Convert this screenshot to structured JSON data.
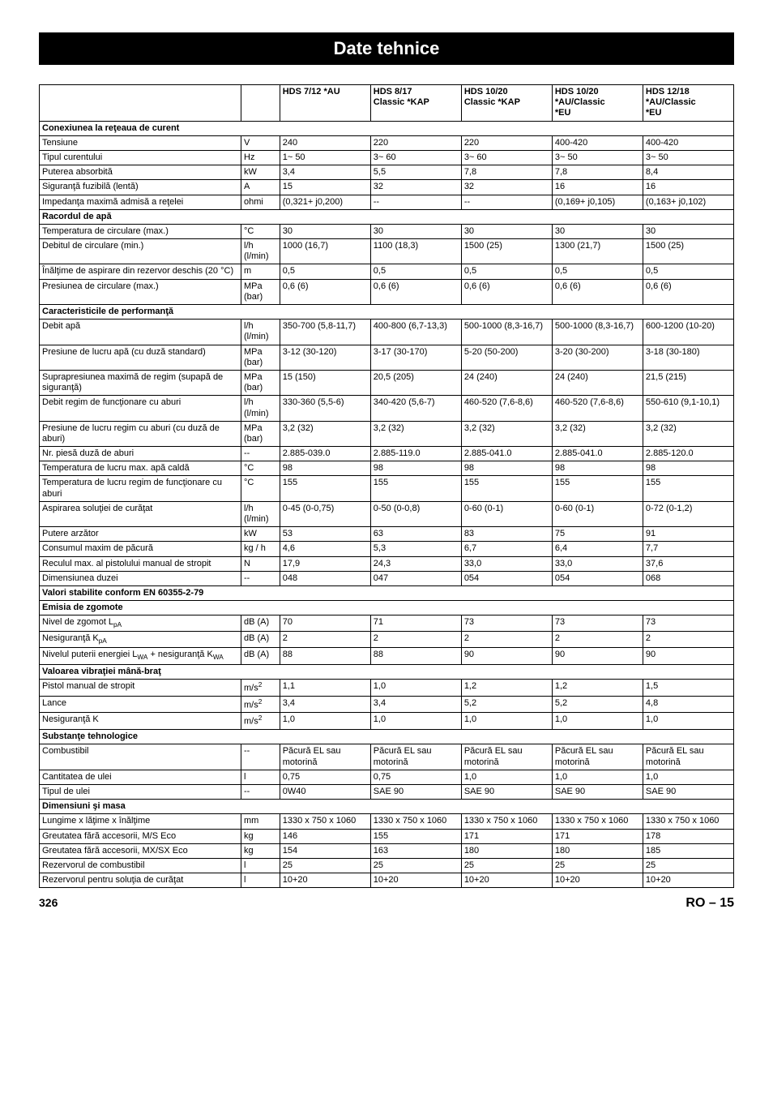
{
  "title": "Date tehnice",
  "footer": {
    "page": "326",
    "lang": "RO –",
    "num": "15"
  },
  "columns": {
    "h1": {
      "c2": "HDS 7/12 *AU",
      "c3": "HDS 8/17\nClassic *KAP",
      "c4": "HDS 10/20\nClassic *KAP",
      "c5": "HDS 10/20\n*AU/Classic\n*EU",
      "c6": "HDS 12/18\n*AU/Classic\n*EU"
    }
  },
  "sections": [
    {
      "title": "Conexiunea la reţeaua de curent",
      "rows": [
        {
          "p": "Tensiune",
          "u": "V",
          "v": [
            "240",
            "220",
            "220",
            "400-420",
            "400-420"
          ]
        },
        {
          "p": "Tipul curentului",
          "u": "Hz",
          "v": [
            "1~ 50",
            "3~ 60",
            "3~ 60",
            "3~ 50",
            "3~ 50"
          ]
        },
        {
          "p": "Puterea absorbită",
          "u": "kW",
          "v": [
            "3,4",
            "5,5",
            "7,8",
            "7,8",
            "8,4"
          ]
        },
        {
          "p": "Siguranţă fuzibilă (lentă)",
          "u": "A",
          "v": [
            "15",
            "32",
            "32",
            "16",
            "16"
          ]
        },
        {
          "p": "Impedanţa maximă admisă a reţelei",
          "u": "ohmi",
          "v": [
            "(0,321+ j0,200)",
            "--",
            "--",
            "(0,169+ j0,105)",
            "(0,163+ j0,102)"
          ]
        }
      ]
    },
    {
      "title": "Racordul de apă",
      "rows": [
        {
          "p": "Temperatura de circulare (max.)",
          "u": "°C",
          "v": [
            "30",
            "30",
            "30",
            "30",
            "30"
          ]
        },
        {
          "p": "Debitul de circulare (min.)",
          "u": "l/h (l/min)",
          "v": [
            "1000 (16,7)",
            "1100 (18,3)",
            "1500 (25)",
            "1300 (21,7)",
            "1500 (25)"
          ]
        },
        {
          "p": "Înălţime de aspirare din rezervor deschis (20 °C)",
          "u": "m",
          "v": [
            "0,5",
            "0,5",
            "0,5",
            "0,5",
            "0,5"
          ]
        },
        {
          "p": "Presiunea de circulare (max.)",
          "u": "MPa (bar)",
          "v": [
            "0,6 (6)",
            "0,6 (6)",
            "0,6 (6)",
            "0,6 (6)",
            "0,6 (6)"
          ]
        }
      ]
    },
    {
      "title": "Caracteristicile de performanţă",
      "rows": [
        {
          "p": "Debit apă",
          "u": "l/h (l/min)",
          "v": [
            "350-700 (5,8-11,7)",
            "400-800 (6,7-13,3)",
            "500-1000 (8,3-16,7)",
            "500-1000 (8,3-16,7)",
            "600-1200 (10-20)"
          ]
        },
        {
          "p": "Presiune de lucru apă (cu duză standard)",
          "u": "MPa (bar)",
          "v": [
            "3-12 (30-120)",
            "3-17 (30-170)",
            "5-20 (50-200)",
            "3-20 (30-200)",
            "3-18 (30-180)"
          ]
        },
        {
          "p": "Suprapresiunea maximă de regim (supapă de siguranţă)",
          "u": "MPa (bar)",
          "v": [
            "15 (150)",
            "20,5 (205)",
            "24 (240)",
            "24 (240)",
            "21,5 (215)"
          ]
        },
        {
          "p": "Debit regim de funcţionare cu aburi",
          "u": "l/h (l/min)",
          "v": [
            "330-360 (5,5-6)",
            "340-420 (5,6-7)",
            "460-520 (7,6-8,6)",
            "460-520 (7,6-8,6)",
            "550-610 (9,1-10,1)"
          ]
        },
        {
          "p": "Presiune de lucru regim cu aburi (cu duză de aburi)",
          "u": "MPa (bar)",
          "v": [
            "3,2 (32)",
            "3,2 (32)",
            "3,2 (32)",
            "3,2 (32)",
            "3,2 (32)"
          ]
        },
        {
          "p": "Nr. piesă duză de aburi",
          "u": "--",
          "v": [
            "2.885-039.0",
            "2.885-119.0",
            "2.885-041.0",
            "2.885-041.0",
            "2.885-120.0"
          ]
        },
        {
          "p": "Temperatura de lucru max. apă caldă",
          "u": "°C",
          "v": [
            "98",
            "98",
            "98",
            "98",
            "98"
          ]
        },
        {
          "p": "Temperatura de lucru regim de funcţionare cu aburi",
          "u": "°C",
          "v": [
            "155",
            "155",
            "155",
            "155",
            "155"
          ]
        },
        {
          "p": "Aspirarea soluţiei de curăţat",
          "u": "l/h (l/min)",
          "v": [
            "0-45 (0-0,75)",
            "0-50 (0-0,8)",
            "0-60 (0-1)",
            "0-60 (0-1)",
            "0-72 (0-1,2)"
          ]
        },
        {
          "p": "Putere arzător",
          "u": "kW",
          "v": [
            "53",
            "63",
            "83",
            "75",
            "91"
          ]
        },
        {
          "p": "Consumul maxim de păcură",
          "u": "kg / h",
          "v": [
            "4,6",
            "5,3",
            "6,7",
            "6,4",
            "7,7"
          ]
        },
        {
          "p": "Reculul max. al pistolului manual de stropit",
          "u": "N",
          "v": [
            "17,9",
            "24,3",
            "33,0",
            "33,0",
            "37,6"
          ]
        },
        {
          "p": "Dimensiunea duzei",
          "u": "--",
          "v": [
            "048",
            "047",
            "054",
            "054",
            "068"
          ]
        }
      ]
    },
    {
      "title": "Valori stabilite conform EN 60355-2-79",
      "rows": []
    },
    {
      "title_html": "Emisia de zgomote",
      "rows": [
        {
          "p_html": "Nivel de zgomot L<sub>pA</sub>",
          "u": "dB (A)",
          "v": [
            "70",
            "71",
            "73",
            "73",
            "73"
          ]
        },
        {
          "p_html": "Nesiguranţă K<sub>pA</sub>",
          "u": "dB (A)",
          "v": [
            "2",
            "2",
            "2",
            "2",
            "2"
          ]
        },
        {
          "p_html": "Nivelul puterii energiei L<sub>WA</sub> + nesiguranţă K<sub>WA</sub>",
          "u": "dB (A)",
          "v": [
            "88",
            "88",
            "90",
            "90",
            "90"
          ]
        }
      ]
    },
    {
      "title_html": "Valoarea vibraţiei mână-braţ",
      "rows": [
        {
          "p": "Pistol manual de stropit",
          "u_html": "m/s<sup>2</sup>",
          "v": [
            "1,1",
            "1,0",
            "1,2",
            "1,2",
            "1,5"
          ]
        },
        {
          "p": "Lance",
          "u_html": "m/s<sup>2</sup>",
          "v": [
            "3,4",
            "3,4",
            "5,2",
            "5,2",
            "4,8"
          ]
        },
        {
          "p": "Nesiguranţă K",
          "u_html": "m/s<sup>2</sup>",
          "v": [
            "1,0",
            "1,0",
            "1,0",
            "1,0",
            "1,0"
          ]
        }
      ]
    },
    {
      "title": "Substanţe tehnologice",
      "rows": [
        {
          "p": "Combustibil",
          "u": "--",
          "v": [
            "Păcură EL sau motorină",
            "Păcură EL sau motorină",
            "Păcură EL sau motorină",
            "Păcură EL sau motorină",
            "Păcură EL sau motorină"
          ]
        },
        {
          "p": "Cantitatea de ulei",
          "u": "l",
          "v": [
            "0,75",
            "0,75",
            "1,0",
            "1,0",
            "1,0"
          ]
        },
        {
          "p": "Tipul de ulei",
          "u": "--",
          "v": [
            "0W40",
            "SAE 90",
            "SAE 90",
            "SAE 90",
            "SAE 90"
          ]
        }
      ]
    },
    {
      "title": "Dimensiuni şi masa",
      "rows": [
        {
          "p": "Lungime x lăţime x înălţime",
          "u": "mm",
          "v": [
            "1330 x 750 x 1060",
            "1330 x 750 x 1060",
            "1330 x 750 x 1060",
            "1330 x 750 x 1060",
            "1330 x 750 x 1060"
          ]
        },
        {
          "p": "Greutatea fără accesorii, M/S Eco",
          "u": "kg",
          "v": [
            "146",
            "155",
            "171",
            "171",
            "178"
          ]
        },
        {
          "p": "Greutatea fără accesorii, MX/SX Eco",
          "u": "kg",
          "v": [
            "154",
            "163",
            "180",
            "180",
            "185"
          ]
        },
        {
          "p": "Rezervorul de combustibil",
          "u": "l",
          "v": [
            "25",
            "25",
            "25",
            "25",
            "25"
          ]
        },
        {
          "p": "Rezervorul pentru soluţia de curăţat",
          "u": "l",
          "v": [
            "10+20",
            "10+20",
            "10+20",
            "10+20",
            "10+20"
          ]
        }
      ]
    }
  ]
}
